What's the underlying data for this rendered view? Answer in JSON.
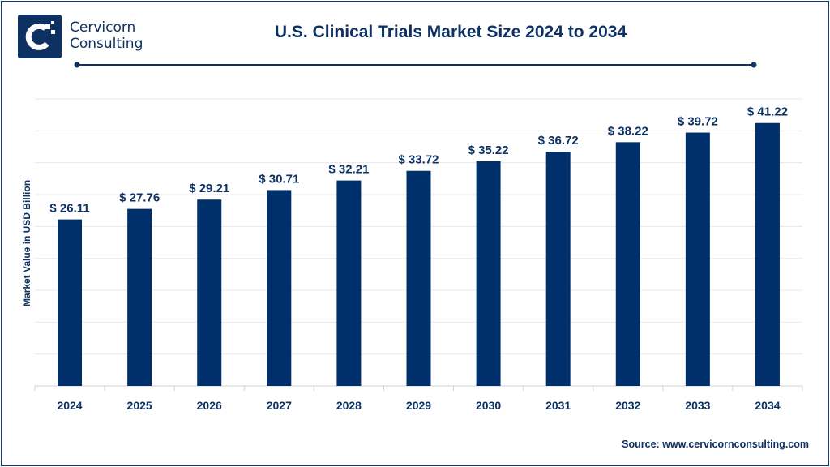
{
  "brand": {
    "line1": "Cervicorn",
    "line2": "Consulting"
  },
  "source": "Source: www.cervicornconsulting.com",
  "colors": {
    "bar": "#00306b",
    "text": "#0d3163",
    "grid": "#e8e8e8"
  },
  "chart_data": {
    "type": "bar",
    "title": "U.S. Clinical Trials Market Size 2024 to 2034",
    "xlabel": "",
    "ylabel": "Market Value in USD Billion",
    "ylim": [
      0,
      45
    ],
    "grid": true,
    "categories": [
      "2024",
      "2025",
      "2026",
      "2027",
      "2028",
      "2029",
      "2030",
      "2031",
      "2032",
      "2033",
      "2034"
    ],
    "values": [
      26.11,
      27.76,
      29.21,
      30.71,
      32.21,
      33.72,
      35.22,
      36.72,
      38.22,
      39.72,
      41.22
    ],
    "data_labels": [
      "$ 26.11",
      "$ 27.76",
      "$ 29.21",
      "$ 30.71",
      "$ 32.21",
      "$ 33.72",
      "$ 35.22",
      "$ 36.72",
      "$ 38.22",
      "$ 39.72",
      "$ 41.22"
    ]
  }
}
